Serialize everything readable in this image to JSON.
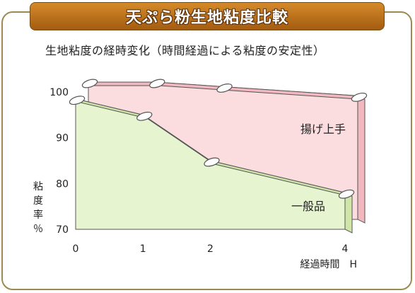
{
  "header": {
    "title": "天ぷら粉生地粘度比較",
    "subtitle": "生地粘度の経時変化（時間経過による粘度の安定性）"
  },
  "colors": {
    "banner": "#c07820",
    "front_fill": "#e6f5d0",
    "front_side": "#cfe6a8",
    "back_fill": "#fbdcdf",
    "back_side": "#f2b8bf",
    "outline": "#555555"
  },
  "chart_data": {
    "type": "area",
    "x": [
      0,
      1,
      2,
      4
    ],
    "xlim": [
      0,
      4
    ],
    "ylim": [
      70,
      100
    ],
    "x_ticks": [
      "0",
      "1",
      "2",
      "4"
    ],
    "y_ticks": [
      "100",
      "90",
      "80",
      "70"
    ],
    "xlabel": "経過時間　H",
    "ylabel": "粘度率％",
    "series": [
      {
        "name": "揚げ上手",
        "values": [
          100,
          100,
          99,
          97
        ]
      },
      {
        "name": "一般品",
        "values": [
          98.5,
          95,
          85,
          78
        ]
      }
    ]
  }
}
